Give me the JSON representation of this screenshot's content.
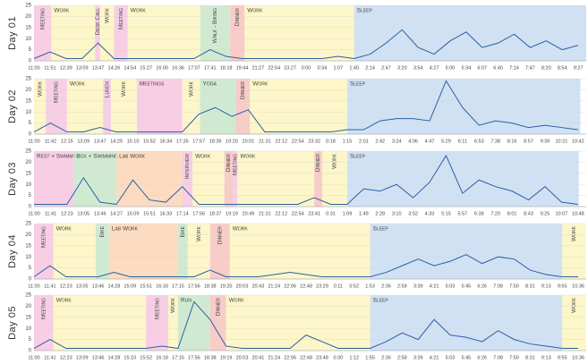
{
  "chart_data": [
    {
      "type": "line",
      "ylabel": "Day 01",
      "ylim": [
        0,
        25
      ],
      "yticks": [
        0,
        5,
        10,
        15,
        20,
        25
      ],
      "categories": [
        "11:00",
        "11:51",
        "12:39",
        "13:09",
        "13:47",
        "14:26",
        "14:54",
        "15:27",
        "16:00",
        "16:36",
        "17:07",
        "17:41",
        "18:18",
        "19:44",
        "21:27",
        "22:54",
        "23:27",
        "0:00",
        "0:34",
        "1:07",
        "1:40",
        "2:14",
        "2:47",
        "3:20",
        "3:54",
        "4:27",
        "5:00",
        "5:34",
        "6:07",
        "6:40",
        "7:14",
        "7:47",
        "8:20",
        "8:54",
        "9:27"
      ],
      "color": "#2b5fa5",
      "values": [
        1,
        4,
        1,
        1,
        8,
        1,
        1,
        1,
        1,
        1,
        1,
        5,
        2,
        1,
        1,
        1,
        1,
        1,
        1,
        2,
        1,
        3,
        8,
        14,
        6,
        3,
        9,
        13,
        6,
        8,
        12,
        6,
        9,
        5,
        7
      ],
      "activities": [
        {
          "label": "Meeting",
          "start": "11:00",
          "end": "11:55",
          "color": "#f7c6e0"
        },
        {
          "label": "Work",
          "start": "11:55",
          "end": "13:40",
          "color": "#fbf5c0"
        },
        {
          "label": "Desk Call",
          "start": "13:40",
          "end": "13:52",
          "color": "#f7c6e0"
        },
        {
          "label": "Work",
          "start": "13:52",
          "end": "14:26",
          "color": "#fbf5c0"
        },
        {
          "label": "Meeting",
          "start": "14:26",
          "end": "14:50",
          "color": "#f7c6e0"
        },
        {
          "label": "Work",
          "start": "14:50",
          "end": "17:20",
          "color": "#fbf5c0"
        },
        {
          "label": "Walk - Biking",
          "start": "17:20",
          "end": "18:40",
          "color": "#c8e6c9"
        },
        {
          "label": "Dinner",
          "start": "18:40",
          "end": "20:00",
          "color": "#f7c3bd"
        },
        {
          "label": "Work",
          "start": "20:00",
          "end": "1:40",
          "color": "#fbf5c0"
        },
        {
          "label": "Sleep",
          "start": "1:40",
          "end": "10:45",
          "color": "#c9dcf2"
        }
      ]
    },
    {
      "type": "line",
      "ylabel": "Day 02",
      "ylim": [
        0,
        25
      ],
      "yticks": [
        0,
        5,
        10,
        15,
        20,
        25
      ],
      "categories": [
        "11:00",
        "11:42",
        "12:15",
        "13:09",
        "13:47",
        "14:29",
        "15:10",
        "15:52",
        "16:34",
        "17:35",
        "17:57",
        "18:39",
        "19:20",
        "20:01",
        "21:31",
        "22:12",
        "22:54",
        "23:32",
        "0:18",
        "1:15",
        "2:01",
        "2:42",
        "3:24",
        "4:06",
        "4:47",
        "5:29",
        "6:11",
        "6:53",
        "7:38",
        "8:16",
        "8:57",
        "9:39",
        "10:21",
        "10:42"
      ],
      "color": "#2b5fa5",
      "values": [
        1,
        5,
        1,
        1,
        3,
        1,
        1,
        1,
        1,
        1,
        9,
        12,
        8,
        11,
        1,
        1,
        1,
        1,
        1,
        2,
        2,
        6,
        7,
        7,
        6,
        24,
        12,
        4,
        6,
        5,
        3,
        4,
        3,
        2
      ],
      "activities": [
        {
          "label": "Work",
          "start": "11:00",
          "end": "11:30",
          "color": "#fbf5c0"
        },
        {
          "label": "Meeting",
          "start": "11:30",
          "end": "12:15",
          "color": "#f7c6e0"
        },
        {
          "label": "Work",
          "start": "12:15",
          "end": "13:55",
          "color": "#fbf5c0"
        },
        {
          "label": "Lunch",
          "start": "13:55",
          "end": "14:15",
          "color": "#f7c6e0"
        },
        {
          "label": "Work",
          "start": "14:15",
          "end": "15:20",
          "color": "#fbf5c0"
        },
        {
          "label": "Meetings",
          "start": "15:20",
          "end": "17:35",
          "color": "#f7c6e0"
        },
        {
          "label": "Work",
          "start": "17:35",
          "end": "18:00",
          "color": "#fbf5c0"
        },
        {
          "label": "Yoga",
          "start": "18:00",
          "end": "19:30",
          "color": "#c8e6c9"
        },
        {
          "label": "Dinner",
          "start": "19:30",
          "end": "20:10",
          "color": "#f7c3bd"
        },
        {
          "label": "Work",
          "start": "20:10",
          "end": "1:15",
          "color": "#fbf5c0"
        },
        {
          "label": "Sleep",
          "start": "1:15",
          "end": "10:45",
          "color": "#c9dcf2"
        }
      ]
    },
    {
      "type": "line",
      "ylabel": "Day 03",
      "ylim": [
        0,
        25
      ],
      "yticks": [
        0,
        5,
        10,
        15,
        20,
        25
      ],
      "categories": [
        "11:00",
        "11:41",
        "12:23",
        "13:05",
        "13:46",
        "14:27",
        "15:09",
        "15:51",
        "16:33",
        "17:14",
        "17:56",
        "18:37",
        "19:19",
        "20:49",
        "21:31",
        "22:12",
        "22:54",
        "23:41",
        "0:31",
        "1:09",
        "1:49",
        "2:28",
        "3:10",
        "3:52",
        "4:33",
        "5:15",
        "5:57",
        "6:38",
        "7:20",
        "8:01",
        "8:43",
        "9:25",
        "10:07",
        "10:48"
      ],
      "color": "#2b5fa5",
      "values": [
        1,
        1,
        1,
        13,
        2,
        1,
        12,
        3,
        2,
        9,
        1,
        1,
        1,
        1,
        1,
        1,
        1,
        4,
        1,
        1,
        8,
        7,
        10,
        4,
        11,
        23,
        6,
        12,
        9,
        7,
        3,
        9,
        2,
        1
      ],
      "activities": [
        {
          "label": "Rest + Swimming",
          "start": "11:00",
          "end": "12:40",
          "color": "#f7c6e0"
        },
        {
          "label": "Box + Swimming",
          "start": "12:40",
          "end": "14:27",
          "color": "#c8e6c9"
        },
        {
          "label": "Lab Work",
          "start": "14:27",
          "end": "17:14",
          "color": "#fbd5b5"
        },
        {
          "label": "Interview",
          "start": "17:14",
          "end": "17:40",
          "color": "#f7c6e0"
        },
        {
          "label": "Work",
          "start": "17:40",
          "end": "19:00",
          "color": "#fbf5c0"
        },
        {
          "label": "Dinner",
          "start": "19:00",
          "end": "19:25",
          "color": "#f7c3bd"
        },
        {
          "label": "Meeting",
          "start": "19:25",
          "end": "19:50",
          "color": "#f7c6e0"
        },
        {
          "label": "Work",
          "start": "19:50",
          "end": "23:41",
          "color": "#fbf5c0"
        },
        {
          "label": "Dinner",
          "start": "23:41",
          "end": "0:05",
          "color": "#f7c3bd"
        },
        {
          "label": "Work",
          "start": "0:05",
          "end": "1:09",
          "color": "#fbf5c0"
        },
        {
          "label": "Sleep",
          "start": "1:09",
          "end": "10:50",
          "color": "#c9dcf2"
        }
      ]
    },
    {
      "type": "line",
      "ylabel": "Day 04",
      "ylim": [
        0,
        25
      ],
      "yticks": [
        0,
        5,
        10,
        15,
        20,
        25
      ],
      "categories": [
        "11:00",
        "11:41",
        "12:23",
        "13:05",
        "13:46",
        "14:28",
        "15:09",
        "15:51",
        "16:33",
        "17:15",
        "17:56",
        "18:38",
        "19:20",
        "20:03",
        "20:43",
        "21:24",
        "22:06",
        "22:48",
        "23:29",
        "0:11",
        "0:52",
        "1:53",
        "2:36",
        "2:58",
        "3:39",
        "4:21",
        "5:03",
        "5:45",
        "6:26",
        "7:08",
        "7:50",
        "8:31",
        "9:13",
        "9:55",
        "10:36"
      ],
      "color": "#2b5fa5",
      "values": [
        1,
        6,
        1,
        1,
        1,
        3,
        1,
        1,
        1,
        1,
        1,
        4,
        1,
        1,
        1,
        2,
        3,
        2,
        1,
        1,
        1,
        1,
        3,
        6,
        9,
        6,
        8,
        11,
        7,
        10,
        9,
        4,
        2,
        1,
        1
      ],
      "activities": [
        {
          "label": "Meeting",
          "start": "11:00",
          "end": "11:50",
          "color": "#f7c6e0"
        },
        {
          "label": "Work",
          "start": "11:50",
          "end": "13:40",
          "color": "#fbf5c0"
        },
        {
          "label": "Bike",
          "start": "13:40",
          "end": "14:15",
          "color": "#c8e6c9"
        },
        {
          "label": "Lab Work",
          "start": "14:15",
          "end": "17:15",
          "color": "#fbd5b5"
        },
        {
          "label": "Bike",
          "start": "17:15",
          "end": "17:40",
          "color": "#c8e6c9"
        },
        {
          "label": "Work",
          "start": "17:40",
          "end": "18:38",
          "color": "#fbf5c0"
        },
        {
          "label": "Dinner",
          "start": "18:38",
          "end": "19:30",
          "color": "#f7c3bd"
        },
        {
          "label": "Work",
          "start": "19:30",
          "end": "1:53",
          "color": "#fbf5c0"
        },
        {
          "label": "Sleep",
          "start": "1:53",
          "end": "9:55",
          "color": "#c9dcf2"
        },
        {
          "label": "Work",
          "start": "9:55",
          "end": "10:55",
          "color": "#fbf5c0"
        }
      ]
    },
    {
      "type": "line",
      "ylabel": "Day 05",
      "ylim": [
        0,
        25
      ],
      "yticks": [
        0,
        5,
        10,
        15,
        20,
        25
      ],
      "categories": [
        "11:00",
        "11:41",
        "12:23",
        "13:09",
        "13:46",
        "14:28",
        "15:10",
        "15:52",
        "16:18",
        "17:15",
        "17:56",
        "18:38",
        "19:19",
        "20:03",
        "20:41",
        "21:24",
        "22:06",
        "22:48",
        "23:48",
        "0:30",
        "1:12",
        "1:55",
        "2:36",
        "2:58",
        "3:39",
        "4:21",
        "5:03",
        "5:45",
        "6:26",
        "7:08",
        "7:50",
        "8:31",
        "9:13",
        "9:55",
        "10:36"
      ],
      "color": "#2b5fa5",
      "values": [
        1,
        5,
        1,
        1,
        1,
        1,
        1,
        1,
        2,
        1,
        22,
        14,
        2,
        1,
        1,
        1,
        1,
        7,
        4,
        1,
        1,
        1,
        4,
        8,
        5,
        14,
        7,
        6,
        4,
        9,
        5,
        3,
        2,
        1,
        1
      ],
      "activities": [
        {
          "label": "Meeting",
          "start": "11:00",
          "end": "11:50",
          "color": "#f7c6e0"
        },
        {
          "label": "Work",
          "start": "11:50",
          "end": "15:52",
          "color": "#fbf5c0"
        },
        {
          "label": "Meeting",
          "start": "15:52",
          "end": "16:40",
          "color": "#f7c6e0"
        },
        {
          "label": "Work",
          "start": "16:40",
          "end": "17:15",
          "color": "#fbf5c0"
        },
        {
          "label": "Run",
          "start": "17:15",
          "end": "18:38",
          "color": "#c8e6c9"
        },
        {
          "label": "Dinner",
          "start": "18:38",
          "end": "19:19",
          "color": "#f7c3bd"
        },
        {
          "label": "Work",
          "start": "19:19",
          "end": "1:55",
          "color": "#fbf5c0"
        },
        {
          "label": "Sleep",
          "start": "1:55",
          "end": "9:55",
          "color": "#c9dcf2"
        },
        {
          "label": "Work",
          "start": "9:55",
          "end": "10:55",
          "color": "#fbf5c0"
        }
      ]
    }
  ]
}
